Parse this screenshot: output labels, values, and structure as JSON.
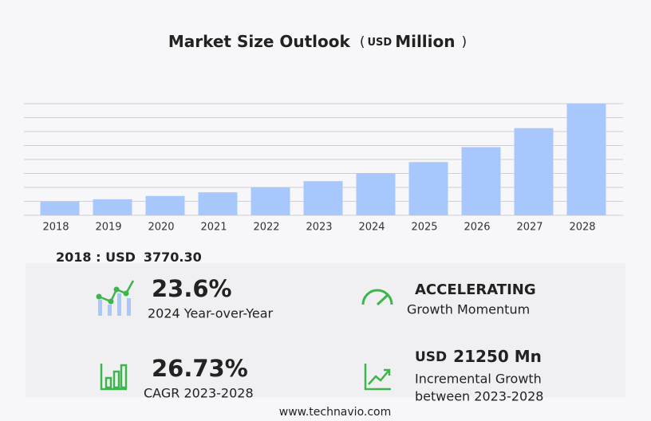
{
  "chart_data": {
    "type": "bar",
    "title": "Market Size Outlook",
    "title_unit_open": "(",
    "title_currency": "USD",
    "title_unit": "Million",
    "title_unit_close": ")",
    "categories": [
      "2018",
      "2019",
      "2020",
      "2021",
      "2022",
      "2023",
      "2024",
      "2025",
      "2026",
      "2027",
      "2028"
    ],
    "values": [
      3770.3,
      4400,
      5300,
      6300,
      7700,
      9361,
      11570,
      14600,
      18700,
      23900,
      30611
    ],
    "color": "#a8c8fd",
    "ylim": [
      0,
      30611
    ],
    "grid": true
  },
  "summary": {
    "base_label": "2018 : USD",
    "base_value": "3770.30",
    "stats": [
      {
        "value": "23.6%",
        "label": "2024 Year-over-Year"
      },
      {
        "value": "ACCELERATING",
        "label": "Growth Momentum"
      },
      {
        "value": "26.73%",
        "label": "CAGR 2023-2028"
      },
      {
        "value_prefix": "USD",
        "value": "21250 Mn",
        "label": "Incremental Growth",
        "label_2": "between 2023-2028"
      }
    ]
  },
  "footer": "www.technavio.com"
}
